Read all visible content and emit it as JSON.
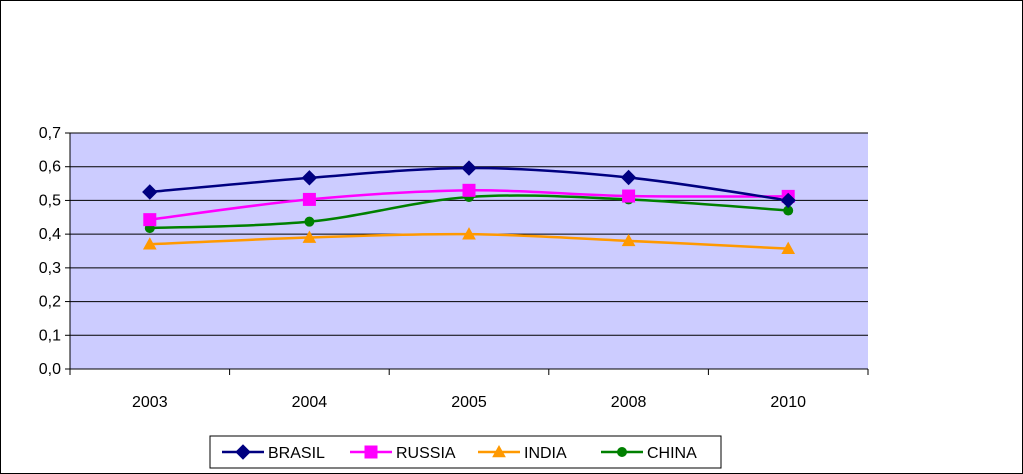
{
  "chart_data": {
    "type": "line",
    "title": "",
    "xlabel": "",
    "ylabel": "",
    "categories": [
      "2003",
      "2004",
      "2005",
      "2008",
      "2010"
    ],
    "ylim": [
      0,
      0.7
    ],
    "y_ticks": [
      "0,0",
      "0,1",
      "0,2",
      "0,3",
      "0,4",
      "0,5",
      "0,6",
      "0,7"
    ],
    "grid": true,
    "smooth": true,
    "legend_position": "bottom",
    "series": [
      {
        "name": "BRASIL",
        "values": [
          0.525,
          0.567,
          0.596,
          0.568,
          0.5
        ],
        "color": "#000080",
        "marker": "diamond"
      },
      {
        "name": "RUSSIA",
        "values": [
          0.443,
          0.503,
          0.53,
          0.513,
          0.512
        ],
        "color": "#ff00ff",
        "marker": "square"
      },
      {
        "name": "INDIA",
        "values": [
          0.37,
          0.39,
          0.4,
          0.38,
          0.357
        ],
        "color": "#ff9900",
        "marker": "triangle"
      },
      {
        "name": "CHINA",
        "values": [
          0.418,
          0.437,
          0.51,
          0.503,
          0.47
        ],
        "color": "#008000",
        "marker": "circle"
      }
    ],
    "plot_background": "#ccccff"
  }
}
